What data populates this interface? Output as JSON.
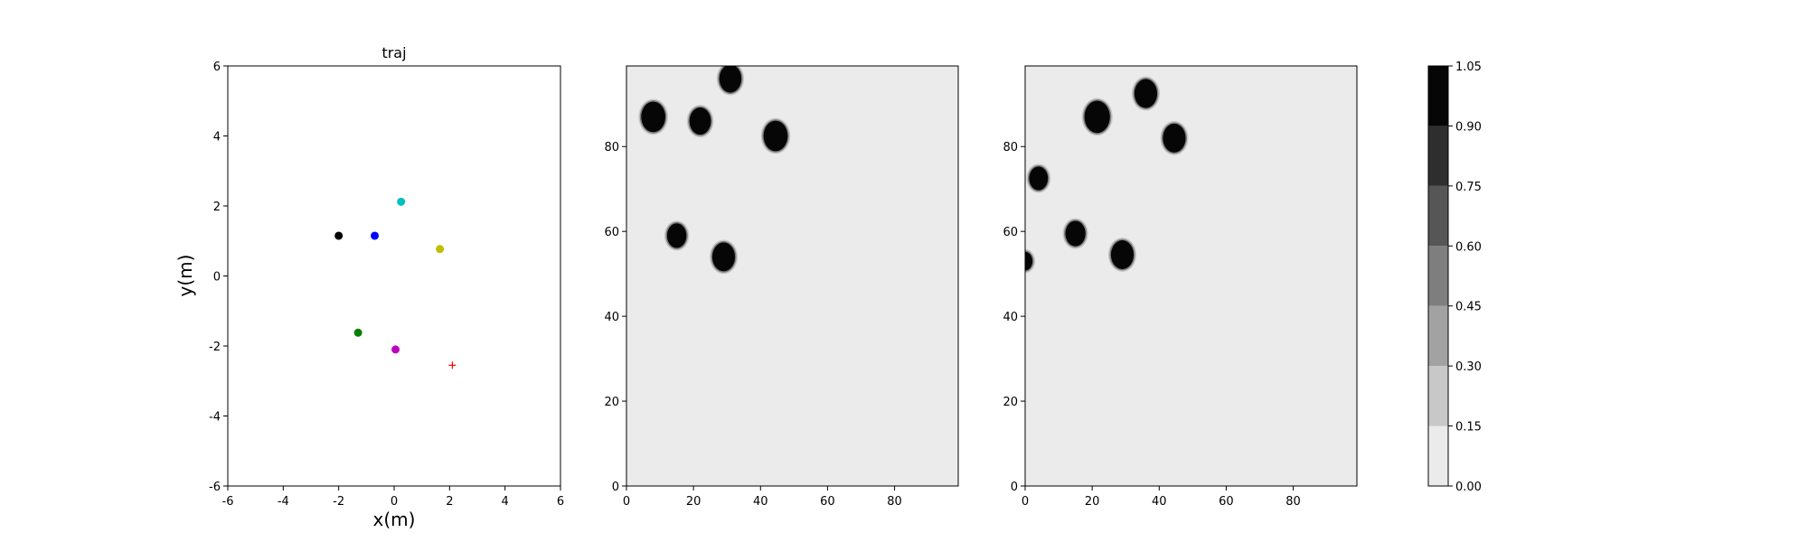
{
  "chart_data": [
    {
      "type": "scatter",
      "title": "traj",
      "xlabel": "x(m)",
      "ylabel": "y(m)",
      "xlim": [
        -6,
        6
      ],
      "ylim": [
        -6,
        6
      ],
      "xticks": [
        -6,
        -4,
        -2,
        0,
        2,
        4,
        6
      ],
      "yticks": [
        -6,
        -4,
        -2,
        0,
        2,
        4,
        6
      ],
      "grid": false,
      "points": [
        {
          "x": -2.0,
          "y": 1.15,
          "color": "#000000",
          "marker": "circle"
        },
        {
          "x": -0.7,
          "y": 1.15,
          "color": "#0000ff",
          "marker": "circle"
        },
        {
          "x": 0.25,
          "y": 2.12,
          "color": "#00bfbf",
          "marker": "circle"
        },
        {
          "x": 1.65,
          "y": 0.77,
          "color": "#bfbf00",
          "marker": "circle"
        },
        {
          "x": -1.3,
          "y": -1.62,
          "color": "#008000",
          "marker": "circle"
        },
        {
          "x": 0.05,
          "y": -2.1,
          "color": "#bf00bf",
          "marker": "circle"
        },
        {
          "x": 2.1,
          "y": -2.55,
          "color": "#ff0000",
          "marker": "plus"
        }
      ]
    },
    {
      "type": "heatmap",
      "title": "",
      "xlim": [
        0,
        99
      ],
      "ylim": [
        0,
        99
      ],
      "xticks": [
        0,
        20,
        40,
        60,
        80
      ],
      "yticks": [
        0,
        20,
        40,
        60,
        80
      ],
      "background_level": 0.0,
      "blobs": [
        {
          "x": 8,
          "y": 87,
          "r": 3.6,
          "level": 1.0
        },
        {
          "x": 22,
          "y": 86,
          "r": 3.2,
          "level": 1.0
        },
        {
          "x": 31,
          "y": 96,
          "r": 3.3,
          "level": 1.0
        },
        {
          "x": 44.5,
          "y": 82.5,
          "r": 3.6,
          "level": 1.0
        },
        {
          "x": 15,
          "y": 59,
          "r": 2.9,
          "level": 1.0
        },
        {
          "x": 29,
          "y": 54,
          "r": 3.4,
          "level": 1.0
        }
      ]
    },
    {
      "type": "heatmap",
      "title": "",
      "xlim": [
        0,
        99
      ],
      "ylim": [
        0,
        99
      ],
      "xticks": [
        0,
        20,
        40,
        60,
        80
      ],
      "yticks": [
        0,
        20,
        40,
        60,
        80
      ],
      "background_level": 0.0,
      "blobs": [
        {
          "x": 21.5,
          "y": 87,
          "r": 3.8,
          "level": 1.0
        },
        {
          "x": 36,
          "y": 92.5,
          "r": 3.4,
          "level": 1.0
        },
        {
          "x": 44.5,
          "y": 82,
          "r": 3.4,
          "level": 1.0
        },
        {
          "x": 4,
          "y": 72.5,
          "r": 2.8,
          "level": 0.95
        },
        {
          "x": 15,
          "y": 59.5,
          "r": 3.0,
          "level": 1.0
        },
        {
          "x": 29,
          "y": 54.5,
          "r": 3.4,
          "level": 1.0
        },
        {
          "x": 0,
          "y": 53,
          "r": 2.2,
          "level": 0.9
        }
      ]
    }
  ],
  "colorbar": {
    "levels": [
      0.0,
      0.15,
      0.3,
      0.45,
      0.6,
      0.75,
      0.9,
      1.05
    ],
    "tick_labels": [
      "0.00",
      "0.15",
      "0.30",
      "0.45",
      "0.60",
      "0.75",
      "0.90",
      "1.05"
    ],
    "colors": [
      "#ebebeb",
      "#c8c8c8",
      "#a2a2a2",
      "#7e7e7e",
      "#565656",
      "#2e2e2e",
      "#060606"
    ]
  }
}
